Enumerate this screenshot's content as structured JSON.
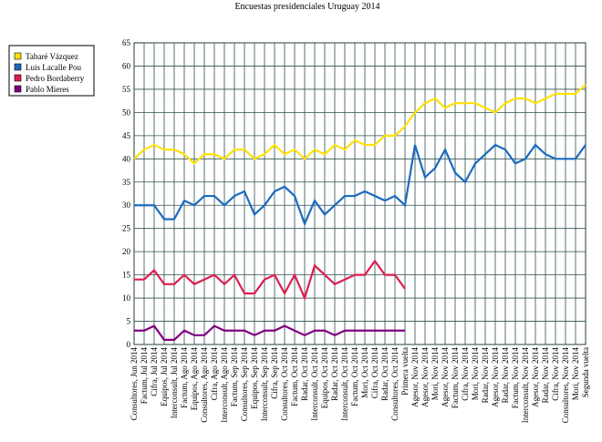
{
  "chart_data": {
    "type": "line",
    "title": "Encuestas presidenciales Uruguay 2014",
    "categories": [
      "Consultores, Jun 2014",
      "Factum, Jul 2014",
      "Cifra, Jul 2014",
      "Equipos, Jul 2014",
      "Interconsult, Jul 2014",
      "Factum, Ago 2014",
      "Equipos, Ago 2014",
      "Consultores, Ago 2014",
      "Cifra, Ago 2014",
      "Interconsult, Ago 2014",
      "Factum, Sep 2014",
      "Consultores, Sep 2014",
      "Equipos, Sep 2014",
      "Interconsult, Sep 2014",
      "Cifra, Sep 2014",
      "Consultores, Oct 2014",
      "Factum, Oct 2014",
      "Radar, Oct 2014",
      "Interconsult, Oct 2014",
      "Equipos, Oct 2014",
      "Radar, Oct 2014",
      "Interconsult, Oct 2014",
      "Factum, Oct 2014",
      "Mori, Oct 2014",
      "Cifra, Oct 2014",
      "Radar, Oct 2014",
      "Consultores, Oct 2014",
      "Primera vuelta",
      "Agesor, Nov 2014",
      "Agesor, Nov 2014",
      "Mori, Nov 2014",
      "Agesor, Nov 2014",
      "Factum, Nov 2014",
      "Cifra, Nov 2014",
      "Mori, Nov 2014",
      "Radar, Nov 2014",
      "Agesor, Nov 2014",
      "Radar, Nov 2014",
      "Factum, Nov 2014",
      "Interconsult, Nov 2014",
      "Agesor, Nov 2014",
      "Radar, Nov 2014",
      "Cifra, Nov 2014",
      "Consultores, Nov 2014",
      "Mori, Nov 2014",
      "Segunda vuelta"
    ],
    "series": [
      {
        "name": "Tabaré Vázquez",
        "color": "#ffe100",
        "values": [
          40,
          42,
          43,
          42,
          42,
          41,
          39,
          41,
          41,
          40,
          42,
          42,
          40,
          41,
          43,
          41,
          42,
          40,
          42,
          41,
          43,
          42,
          44,
          43,
          43,
          45,
          45,
          47,
          50,
          52,
          53,
          51,
          52,
          52,
          52,
          51,
          50,
          52,
          53,
          53,
          52,
          53,
          54,
          54,
          54,
          56
        ]
      },
      {
        "name": "Luis Lacalle Pou",
        "color": "#1a6bbf",
        "values": [
          30,
          30,
          30,
          27,
          27,
          31,
          30,
          32,
          32,
          30,
          32,
          33,
          28,
          30,
          33,
          34,
          32,
          26,
          31,
          28,
          30,
          32,
          32,
          33,
          32,
          31,
          32,
          30,
          43,
          36,
          38,
          42,
          37,
          35,
          39,
          41,
          43,
          42,
          39,
          40,
          43,
          41,
          40,
          40,
          40,
          43
        ]
      },
      {
        "name": "Pedro Bordaberry",
        "color": "#dc1e4e",
        "values": [
          14,
          14,
          16,
          13,
          13,
          15,
          13,
          14,
          15,
          13,
          15,
          11,
          11,
          14,
          15,
          11,
          15,
          10,
          17,
          15,
          13,
          14,
          15,
          15,
          18,
          15,
          15,
          12,
          null,
          null,
          null,
          null,
          null,
          null,
          null,
          null,
          null,
          null,
          null,
          null,
          null,
          null,
          null,
          null,
          null,
          null
        ]
      },
      {
        "name": "Pablo Mieres",
        "color": "#800080",
        "values": [
          3,
          3,
          4,
          1,
          1,
          3,
          2,
          2,
          4,
          3,
          3,
          3,
          2,
          3,
          3,
          4,
          3,
          2,
          3,
          3,
          2,
          3,
          3,
          3,
          3,
          3,
          3,
          3,
          null,
          null,
          null,
          null,
          null,
          null,
          null,
          null,
          null,
          null,
          null,
          null,
          null,
          null,
          null,
          null,
          null,
          null
        ]
      }
    ],
    "ylim": [
      0,
      65
    ],
    "yticks": [
      0,
      5,
      10,
      15,
      20,
      25,
      30,
      35,
      40,
      45,
      50,
      55,
      60,
      65
    ],
    "grid": true
  }
}
